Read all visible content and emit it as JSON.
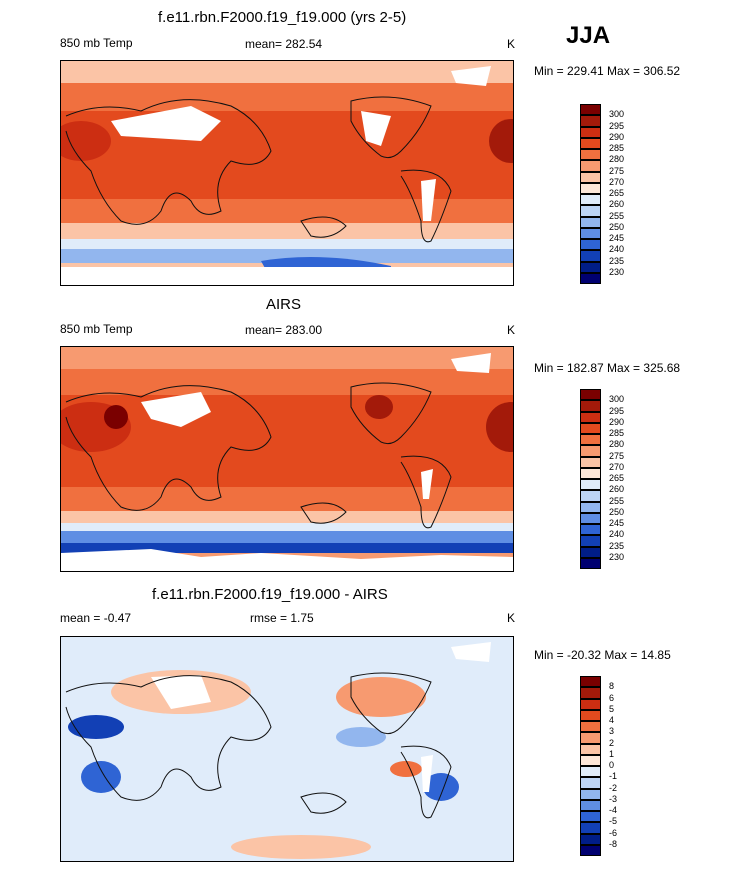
{
  "season": "JJA",
  "panels": [
    {
      "title": "f.e11.rbn.F2000.f19_f19.000 (yrs 2-5)",
      "left_label": "850 mb Temp",
      "center_label": "mean= 282.54",
      "units": "K",
      "minmax": "Min = 229.41 Max = 306.52",
      "palette": "temp",
      "colorbar_labels": [
        "300",
        "295",
        "290",
        "285",
        "280",
        "275",
        "270",
        "265",
        "260",
        "255",
        "250",
        "245",
        "240",
        "235",
        "230"
      ]
    },
    {
      "title": "AIRS",
      "left_label": "850 mb Temp",
      "center_label": "mean= 283.00",
      "units": "K",
      "minmax": "Min = 182.87 Max = 325.68",
      "palette": "temp",
      "colorbar_labels": [
        "300",
        "295",
        "290",
        "285",
        "280",
        "275",
        "270",
        "265",
        "260",
        "255",
        "250",
        "245",
        "240",
        "235",
        "230"
      ]
    },
    {
      "title": "f.e11.rbn.F2000.f19_f19.000 - AIRS",
      "left_label": "mean =  -0.47",
      "center_label": "rmse =   1.75",
      "units": "K",
      "minmax": "Min = -20.32 Max =  14.85",
      "palette": "diff",
      "colorbar_labels": [
        "8",
        "6",
        "5",
        "4",
        "3",
        "2",
        "1",
        "0",
        "-1",
        "-2",
        "-3",
        "-4",
        "-5",
        "-6",
        "-8"
      ]
    }
  ],
  "colors": {
    "temp": [
      "#7a0000",
      "#a31a0a",
      "#cc2e12",
      "#e34a1e",
      "#f0703f",
      "#f79a70",
      "#fbc4a6",
      "#fde7d8",
      "#e0ecfa",
      "#bcd4f5",
      "#92b6ee",
      "#5f8ee3",
      "#2f64d4",
      "#1240b5",
      "#001d87",
      "#000070"
    ],
    "diff": [
      "#7a0000",
      "#a31a0a",
      "#cc2e12",
      "#e34a1e",
      "#f0703f",
      "#f79a70",
      "#fbc4a6",
      "#fde7d8",
      "#e0ecfa",
      "#bcd4f5",
      "#92b6ee",
      "#5f8ee3",
      "#2f64d4",
      "#1240b5",
      "#001d87",
      "#000070"
    ]
  }
}
